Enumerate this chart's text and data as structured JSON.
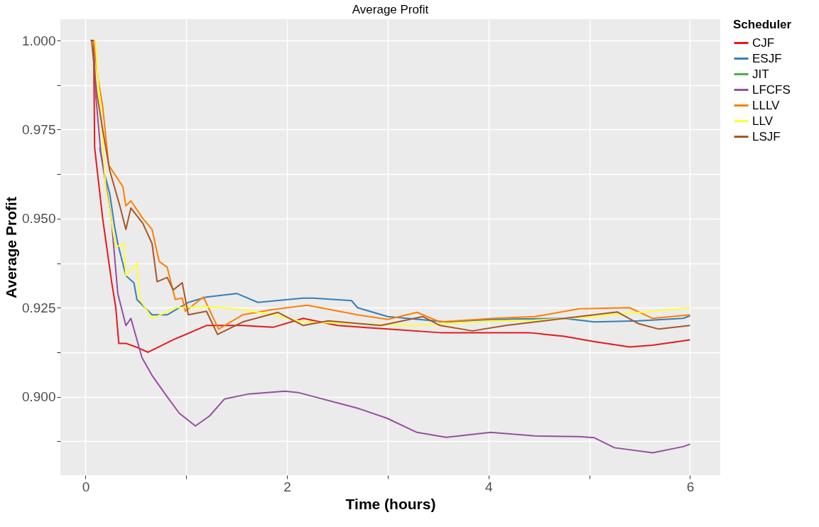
{
  "chart_data": {
    "type": "line",
    "title": "Average Profit",
    "xlabel": "Time (hours)",
    "ylabel": "Average Profit",
    "legend_title": "Scheduler",
    "legend": "right",
    "grid": true,
    "xlim": [
      -0.25,
      6.3
    ],
    "ylim": [
      0.878,
      1.006
    ],
    "xticks": [
      0,
      {
        "value": 1,
        "label": null
      },
      2,
      {
        "value": 3,
        "label": null
      },
      4,
      {
        "value": 5,
        "label": null
      },
      6
    ],
    "yticks": [
      {
        "value": 0.8875,
        "label": null
      },
      {
        "value": 0.9,
        "label": "0.900"
      },
      {
        "value": 0.9125,
        "label": null
      },
      {
        "value": 0.925,
        "label": "0.925"
      },
      {
        "value": 0.9375,
        "label": null
      },
      {
        "value": 0.95,
        "label": "0.950"
      },
      {
        "value": 0.9625,
        "label": null
      },
      {
        "value": 0.975,
        "label": "0.975"
      },
      {
        "value": 0.9875,
        "label": null
      },
      {
        "value": 1.0,
        "label": "1.000"
      }
    ],
    "series": [
      {
        "name": "CJF",
        "color": "#e41a1c",
        "x": [
          0.05,
          0.08,
          0.09,
          0.13,
          0.17,
          0.21,
          0.26,
          0.3,
          0.33,
          0.4,
          0.5,
          0.62,
          0.87,
          1.2,
          1.56,
          1.86,
          2.16,
          2.5,
          3.0,
          3.52,
          4.0,
          4.4,
          4.75,
          5.05,
          5.4,
          5.63,
          6.0
        ],
        "values": [
          1.0,
          1.0,
          0.97,
          0.96,
          0.95,
          0.942,
          0.932,
          0.925,
          0.915,
          0.915,
          0.914,
          0.9125,
          0.916,
          0.92,
          0.92,
          0.9195,
          0.922,
          0.92,
          0.919,
          0.918,
          0.918,
          0.918,
          0.917,
          0.9155,
          0.914,
          0.9145,
          0.916
        ]
      },
      {
        "name": "ESJF",
        "color": "#377eb8",
        "x": [
          0.14,
          0.18,
          0.24,
          0.29,
          0.32,
          0.4,
          0.48,
          0.51,
          0.66,
          0.81,
          1.02,
          1.2,
          1.5,
          1.71,
          2.16,
          2.26,
          2.64,
          2.7,
          3.0,
          3.58,
          4.02,
          4.75,
          5.05,
          5.49,
          5.93,
          6.0
        ],
        "values": [
          0.97,
          0.9635,
          0.957,
          0.9475,
          0.943,
          0.934,
          0.932,
          0.9273,
          0.923,
          0.923,
          0.9265,
          0.928,
          0.929,
          0.9265,
          0.9277,
          0.9277,
          0.927,
          0.925,
          0.9225,
          0.921,
          0.9217,
          0.922,
          0.921,
          0.9213,
          0.922,
          0.9227
        ]
      },
      {
        "name": "JIT",
        "color": "#4daf4a"
      },
      {
        "name": "LFCFS",
        "color": "#984ea3",
        "x": [
          0.08,
          0.1,
          0.15,
          0.26,
          0.32,
          0.4,
          0.45,
          0.56,
          0.66,
          0.81,
          0.93,
          1.09,
          1.23,
          1.38,
          1.62,
          1.98,
          2.11,
          2.7,
          2.99,
          3.29,
          3.58,
          4.02,
          4.46,
          4.9,
          5.05,
          5.25,
          5.63,
          5.93,
          6.0
        ],
        "values": [
          1.0,
          0.985,
          0.969,
          0.9486,
          0.929,
          0.92,
          0.922,
          0.911,
          0.906,
          0.9,
          0.8954,
          0.8918,
          0.8946,
          0.8994,
          0.9008,
          0.9016,
          0.9012,
          0.8968,
          0.894,
          0.89,
          0.8886,
          0.89,
          0.889,
          0.8888,
          0.8885,
          0.8857,
          0.8843,
          0.886,
          0.8867
        ]
      },
      {
        "name": "LLLV",
        "color": "#ff7f00",
        "x": [
          0.08,
          0.12,
          0.17,
          0.23,
          0.37,
          0.4,
          0.45,
          0.57,
          0.66,
          0.73,
          0.81,
          0.89,
          0.96,
          0.99,
          1.17,
          1.32,
          1.56,
          1.86,
          2.2,
          2.7,
          3.0,
          3.29,
          3.52,
          4.05,
          4.46,
          4.9,
          5.4,
          5.63,
          6.0
        ],
        "values": [
          1.0,
          0.99,
          0.9815,
          0.965,
          0.959,
          0.9536,
          0.955,
          0.95,
          0.947,
          0.938,
          0.9364,
          0.9273,
          0.9277,
          0.924,
          0.928,
          0.919,
          0.923,
          0.9245,
          0.9257,
          0.923,
          0.9217,
          0.9237,
          0.921,
          0.922,
          0.9225,
          0.9247,
          0.925,
          0.922,
          0.923
        ]
      },
      {
        "name": "LLV",
        "color": "#ffff33",
        "x": [
          0.1,
          0.12,
          0.14,
          0.2,
          0.26,
          0.3,
          0.38,
          0.4,
          0.51,
          0.54,
          0.66,
          0.9,
          1.2,
          1.56,
          1.86,
          2.16,
          2.7,
          3.29,
          3.87,
          4.46,
          5.05,
          5.63,
          6.0
        ],
        "values": [
          1.0,
          0.99,
          0.984,
          0.9585,
          0.9486,
          0.942,
          0.943,
          0.934,
          0.9375,
          0.9273,
          0.922,
          0.925,
          0.9253,
          0.9245,
          0.923,
          0.921,
          0.9205,
          0.92,
          0.921,
          0.9215,
          0.9225,
          0.924,
          0.925
        ]
      },
      {
        "name": "LSJF",
        "color": "#a65628",
        "x": [
          0.06,
          0.11,
          0.17,
          0.24,
          0.34,
          0.4,
          0.45,
          0.57,
          0.66,
          0.71,
          0.81,
          0.87,
          0.96,
          1.02,
          1.2,
          1.31,
          1.56,
          1.91,
          2.16,
          2.41,
          2.93,
          3.35,
          3.52,
          3.84,
          4.17,
          4.75,
          5.28,
          5.49,
          5.69,
          6.0
        ],
        "values": [
          1.0,
          0.9855,
          0.975,
          0.9635,
          0.9536,
          0.947,
          0.953,
          0.9486,
          0.943,
          0.9323,
          0.9335,
          0.93,
          0.932,
          0.923,
          0.924,
          0.9175,
          0.921,
          0.9237,
          0.92,
          0.9213,
          0.92,
          0.9225,
          0.92,
          0.9185,
          0.92,
          0.922,
          0.9238,
          0.9205,
          0.919,
          0.92
        ]
      }
    ]
  }
}
